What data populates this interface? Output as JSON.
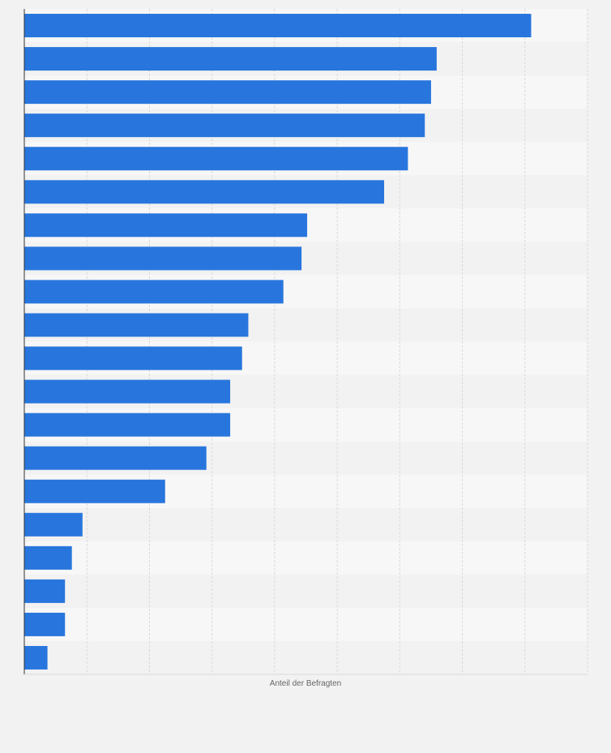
{
  "colors": {
    "background": "#f2f2f2",
    "plot_background": "#f7f7f7",
    "band_alternate": "#f2f2f2",
    "bar": "#2876dd",
    "grid": "#d9d9d9",
    "axis": "#333333"
  },
  "chart_data": {
    "type": "bar",
    "orientation": "horizontal",
    "xlabel": "Anteil der Befragten",
    "ylabel": "",
    "xlim": [
      0,
      9
    ],
    "grid": true,
    "gridlines_count": 9,
    "values": [
      8.1,
      6.59,
      6.5,
      6.4,
      6.13,
      5.75,
      4.52,
      4.43,
      4.14,
      3.58,
      3.48,
      3.29,
      3.29,
      2.91,
      2.25,
      0.93,
      0.76,
      0.65,
      0.65,
      0.37
    ]
  }
}
